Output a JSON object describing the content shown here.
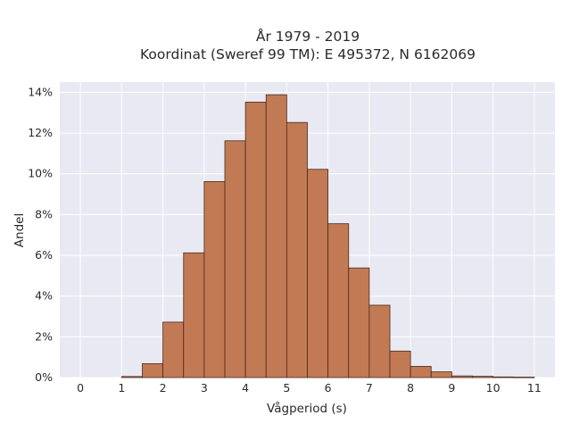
{
  "chart_data": {
    "type": "bar",
    "title": "År 1979 - 2019",
    "subtitle": "Koordinat (Sweref 99 TM): E 495372, N 6162069",
    "xlabel": "Vågperiod (s)",
    "ylabel": "Andel",
    "xlim": [
      -0.5,
      11.5
    ],
    "ylim": [
      0,
      0.145
    ],
    "x_ticks": [
      0,
      1,
      2,
      3,
      4,
      5,
      6,
      7,
      8,
      9,
      10,
      11
    ],
    "y_ticks": [
      0,
      0.02,
      0.04,
      0.06,
      0.08,
      0.1,
      0.12,
      0.14
    ],
    "y_tick_labels": [
      "0%",
      "2%",
      "4%",
      "6%",
      "8%",
      "10%",
      "12%",
      "14%"
    ],
    "bin_width": 0.5,
    "bins": [
      {
        "x0": 1.0,
        "x1": 1.5,
        "value": 0.0005
      },
      {
        "x0": 1.5,
        "x1": 2.0,
        "value": 0.0068
      },
      {
        "x0": 2.0,
        "x1": 2.5,
        "value": 0.0272
      },
      {
        "x0": 2.5,
        "x1": 3.0,
        "value": 0.0612
      },
      {
        "x0": 3.0,
        "x1": 3.5,
        "value": 0.0962
      },
      {
        "x0": 3.5,
        "x1": 4.0,
        "value": 0.1162
      },
      {
        "x0": 4.0,
        "x1": 4.5,
        "value": 0.1352
      },
      {
        "x0": 4.5,
        "x1": 5.0,
        "value": 0.1388
      },
      {
        "x0": 5.0,
        "x1": 5.5,
        "value": 0.1252
      },
      {
        "x0": 5.5,
        "x1": 6.0,
        "value": 0.1022
      },
      {
        "x0": 6.0,
        "x1": 6.5,
        "value": 0.0755
      },
      {
        "x0": 6.5,
        "x1": 7.0,
        "value": 0.0538
      },
      {
        "x0": 7.0,
        "x1": 7.5,
        "value": 0.0355
      },
      {
        "x0": 7.5,
        "x1": 8.0,
        "value": 0.013
      },
      {
        "x0": 8.0,
        "x1": 8.5,
        "value": 0.0055
      },
      {
        "x0": 8.5,
        "x1": 9.0,
        "value": 0.0028
      },
      {
        "x0": 9.0,
        "x1": 9.5,
        "value": 0.0008
      },
      {
        "x0": 9.5,
        "x1": 10.0,
        "value": 0.0006
      },
      {
        "x0": 10.0,
        "x1": 10.5,
        "value": 0.0003
      },
      {
        "x0": 10.5,
        "x1": 11.0,
        "value": 0.0002
      }
    ],
    "grid": true,
    "legend": "none",
    "colors": {
      "bar_fill": "#c17a54",
      "bar_edge": "#4a2a1a",
      "plot_background": "#e8e9f2",
      "grid": "#ffffff"
    }
  }
}
